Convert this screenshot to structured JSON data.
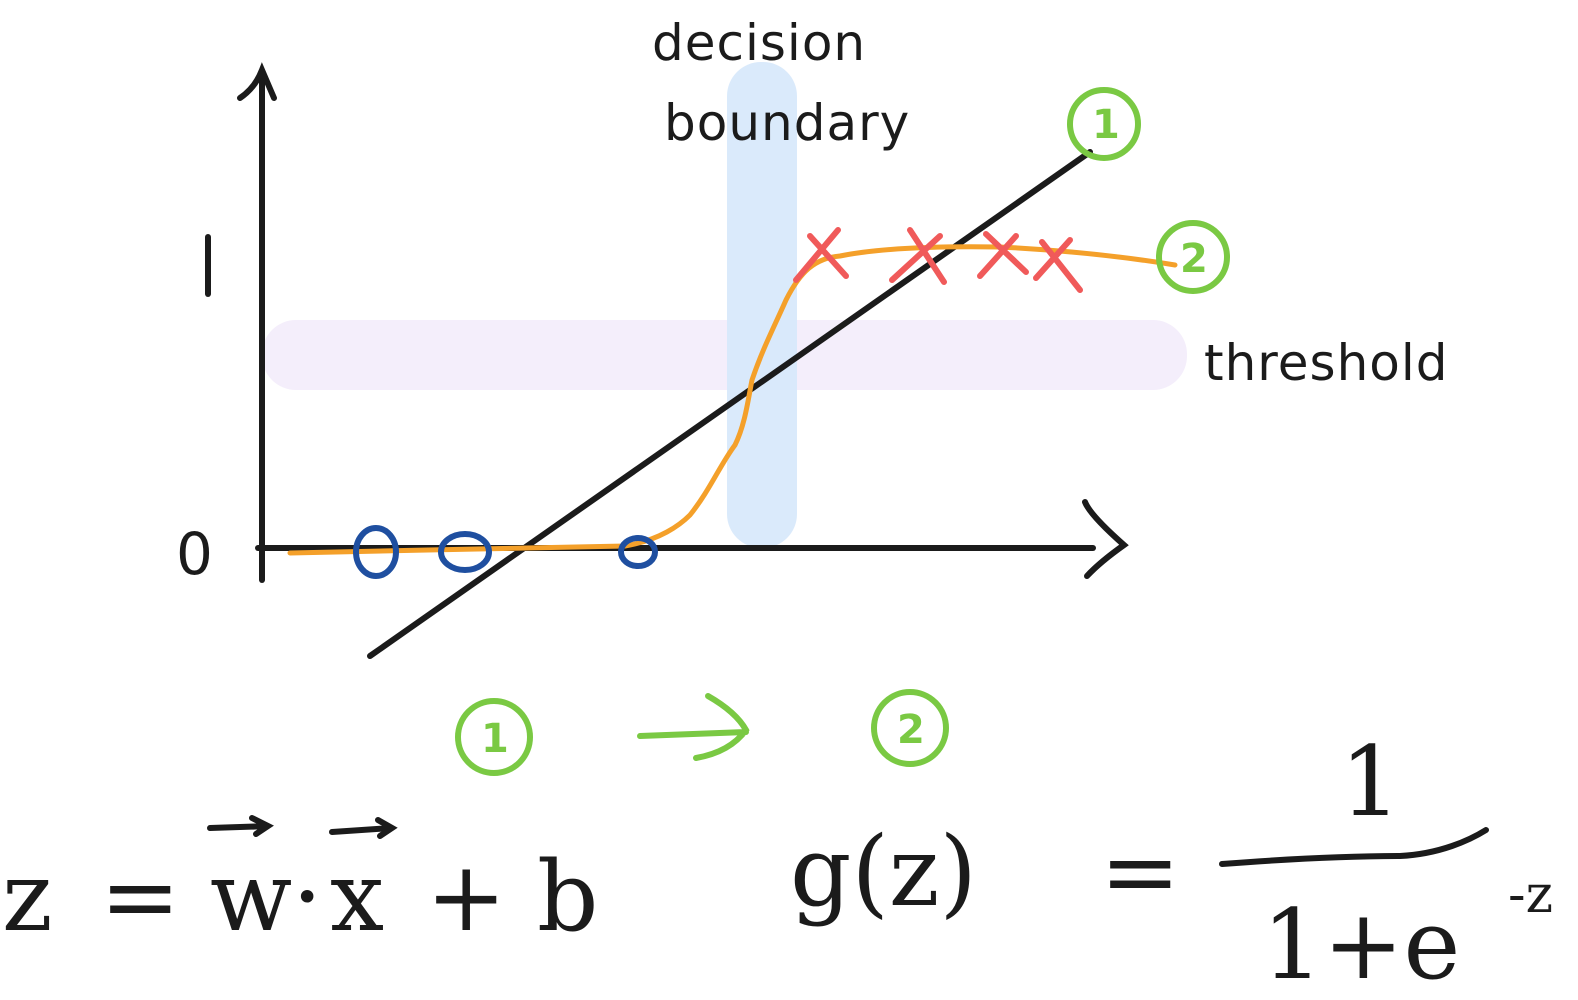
{
  "labels": {
    "decision_line1": "decision",
    "decision_line2": "boundary",
    "threshold": "threshold",
    "y_one": "1",
    "y_zero": "0",
    "marker_1": "1",
    "marker_2": "2",
    "flow_from": "1",
    "flow_to": "2"
  },
  "equations": {
    "linear_z": "z",
    "linear_equals": "=",
    "linear_w": "w",
    "linear_dot": "·",
    "linear_x": "x",
    "linear_plus_b": "+ b",
    "sigmoid_lhs": "g(z)",
    "sigmoid_equals": "=",
    "sigmoid_numerator": "1",
    "sigmoid_denominator": "1+e",
    "sigmoid_exponent": "-z"
  },
  "colors": {
    "ink": "#1b1b1b",
    "sigmoid_curve": "#f4a02a",
    "positive_marks": "#f05a5a",
    "negative_marks": "#1f4fa0",
    "annotation_green": "#7ac943",
    "decision_band": "#d6e8fb",
    "threshold_band": "#f3ecfb"
  },
  "chart_data": {
    "type": "scatter",
    "ylim": [
      0,
      1
    ],
    "ytick_labels": [
      "0",
      "1"
    ],
    "series": [
      {
        "marker": "o",
        "y": 0,
        "count": 3
      },
      {
        "marker": "x",
        "y": 1,
        "count": 4
      }
    ],
    "curves": [
      "linear",
      "sigmoid"
    ]
  }
}
